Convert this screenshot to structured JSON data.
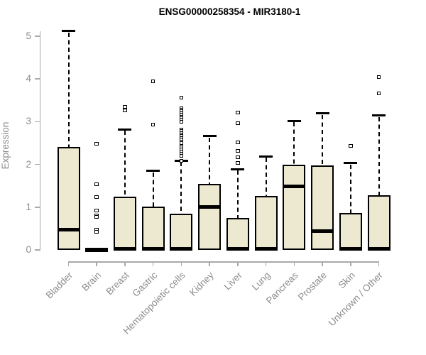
{
  "chart_data": {
    "type": "boxplot",
    "title": "ENSG00000258354 - MIR3180-1",
    "ylabel": "Expression",
    "xlabel": "",
    "ylim": [
      0,
      5.2
    ],
    "yticks": [
      0,
      1,
      2,
      3,
      4,
      5
    ],
    "grid": false,
    "legend": false,
    "box_fill": "#ede8d0",
    "box_border": "#000000",
    "axis_color": "#a9a9a9",
    "label_color": "#8c8c8c",
    "categories": [
      "Bladder",
      "Brain",
      "Breast",
      "Gastric",
      "Hematopoietic cells",
      "Kidney",
      "Liver",
      "Lung",
      "Pancreas",
      "Prostate",
      "Skin",
      "Unknown / Other"
    ],
    "series": [
      {
        "name": "Bladder",
        "q1": 0,
        "median": 0.48,
        "q3": 2.41,
        "whisker_low": 0,
        "whisker_high": 5.12,
        "outliers": []
      },
      {
        "name": "Brain",
        "q1": 0,
        "median": 0.01,
        "q3": 0.02,
        "whisker_low": 0,
        "whisker_high": 0.02,
        "outliers": [
          2.49,
          1.53,
          1.23,
          0.93,
          0.8,
          0.78,
          0.47,
          0.43
        ]
      },
      {
        "name": "Breast",
        "q1": 0,
        "median": 0.02,
        "q3": 1.24,
        "whisker_low": 0,
        "whisker_high": 2.82,
        "outliers": [
          3.34,
          3.27
        ]
      },
      {
        "name": "Gastric",
        "q1": 0,
        "median": 0.02,
        "q3": 1.02,
        "whisker_low": 0,
        "whisker_high": 1.85,
        "outliers": [
          3.95,
          2.94
        ]
      },
      {
        "name": "Hematopoietic cells",
        "q1": 0,
        "median": 0.02,
        "q3": 0.84,
        "whisker_low": 0,
        "whisker_high": 2.09,
        "outliers": [
          3.57,
          3.32,
          3.28,
          3.24,
          3.2,
          3.16,
          3.12,
          3.08,
          3.04,
          3.0,
          2.82,
          2.78,
          2.74,
          2.7,
          2.66,
          2.62,
          2.58,
          2.54,
          2.5,
          2.44,
          2.4,
          2.35,
          2.3,
          2.25,
          2.2,
          2.09
        ]
      },
      {
        "name": "Kidney",
        "q1": 0,
        "median": 1.0,
        "q3": 1.55,
        "whisker_low": 0,
        "whisker_high": 2.66,
        "outliers": []
      },
      {
        "name": "Liver",
        "q1": 0,
        "median": 0.02,
        "q3": 0.75,
        "whisker_low": 0,
        "whisker_high": 1.89,
        "outliers": [
          3.22,
          2.97,
          2.51,
          2.31,
          2.16,
          2.03
        ]
      },
      {
        "name": "Lung",
        "q1": 0,
        "median": 0.02,
        "q3": 1.27,
        "whisker_low": 0,
        "whisker_high": 2.19,
        "outliers": []
      },
      {
        "name": "Pancreas",
        "q1": 0,
        "median": 1.48,
        "q3": 2.0,
        "whisker_low": 0,
        "whisker_high": 3.02,
        "outliers": []
      },
      {
        "name": "Prostate",
        "q1": 0,
        "median": 0.44,
        "q3": 1.98,
        "whisker_low": 0,
        "whisker_high": 3.19,
        "outliers": []
      },
      {
        "name": "Skin",
        "q1": 0,
        "median": 0.02,
        "q3": 0.86,
        "whisker_low": 0,
        "whisker_high": 2.03,
        "outliers": [
          2.43
        ]
      },
      {
        "name": "Unknown / Other",
        "q1": 0,
        "median": 0.02,
        "q3": 1.28,
        "whisker_low": 0,
        "whisker_high": 3.14,
        "outliers": [
          4.05,
          3.67
        ]
      }
    ]
  }
}
